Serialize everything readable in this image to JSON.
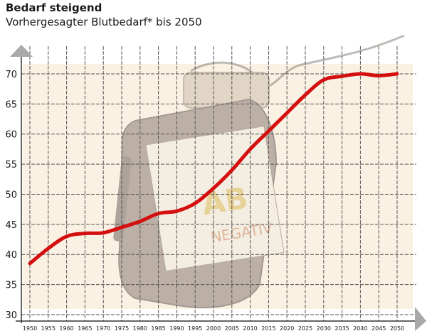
{
  "header": {
    "title": "Bedarf steigend",
    "subtitle": "Vorhergesagter Blutbedarf* bis 2050"
  },
  "bag": {
    "labels": [
      "AB",
      "NEGATIV"
    ]
  },
  "colors": {
    "line": "#d40f0f",
    "plot_bg": "#fbf1e3",
    "grid": "#555555",
    "arrow": "#a9a9a9"
  },
  "chart_data": {
    "type": "line",
    "title": "Bedarf steigend",
    "subtitle": "Vorhergesagter Blutbedarf* bis 2050",
    "xlabel": "",
    "ylabel": "",
    "xlim": [
      1950,
      2050
    ],
    "ylim": [
      30,
      72
    ],
    "grid": true,
    "x_ticks": [
      1950,
      1955,
      1960,
      1965,
      1970,
      1975,
      1980,
      1985,
      1990,
      1995,
      2000,
      2005,
      2010,
      2015,
      2020,
      2025,
      2030,
      2035,
      2040,
      2045,
      2050
    ],
    "y_ticks": [
      30,
      35,
      40,
      45,
      50,
      55,
      60,
      65,
      70
    ],
    "series": [
      {
        "x": [
          1950,
          1955,
          1960,
          1965,
          1970,
          1975,
          1980,
          1985,
          1990,
          1995,
          2000,
          2005,
          2010,
          2015,
          2020,
          2025,
          2030,
          2035,
          2040,
          2045,
          2050
        ],
        "values": [
          38.5,
          41,
          43,
          43.5,
          43.6,
          44.5,
          45.5,
          46.8,
          47.2,
          48.5,
          51,
          54,
          57.5,
          60.5,
          63.5,
          66.5,
          69,
          69.6,
          70,
          69.7,
          70
        ]
      }
    ]
  }
}
